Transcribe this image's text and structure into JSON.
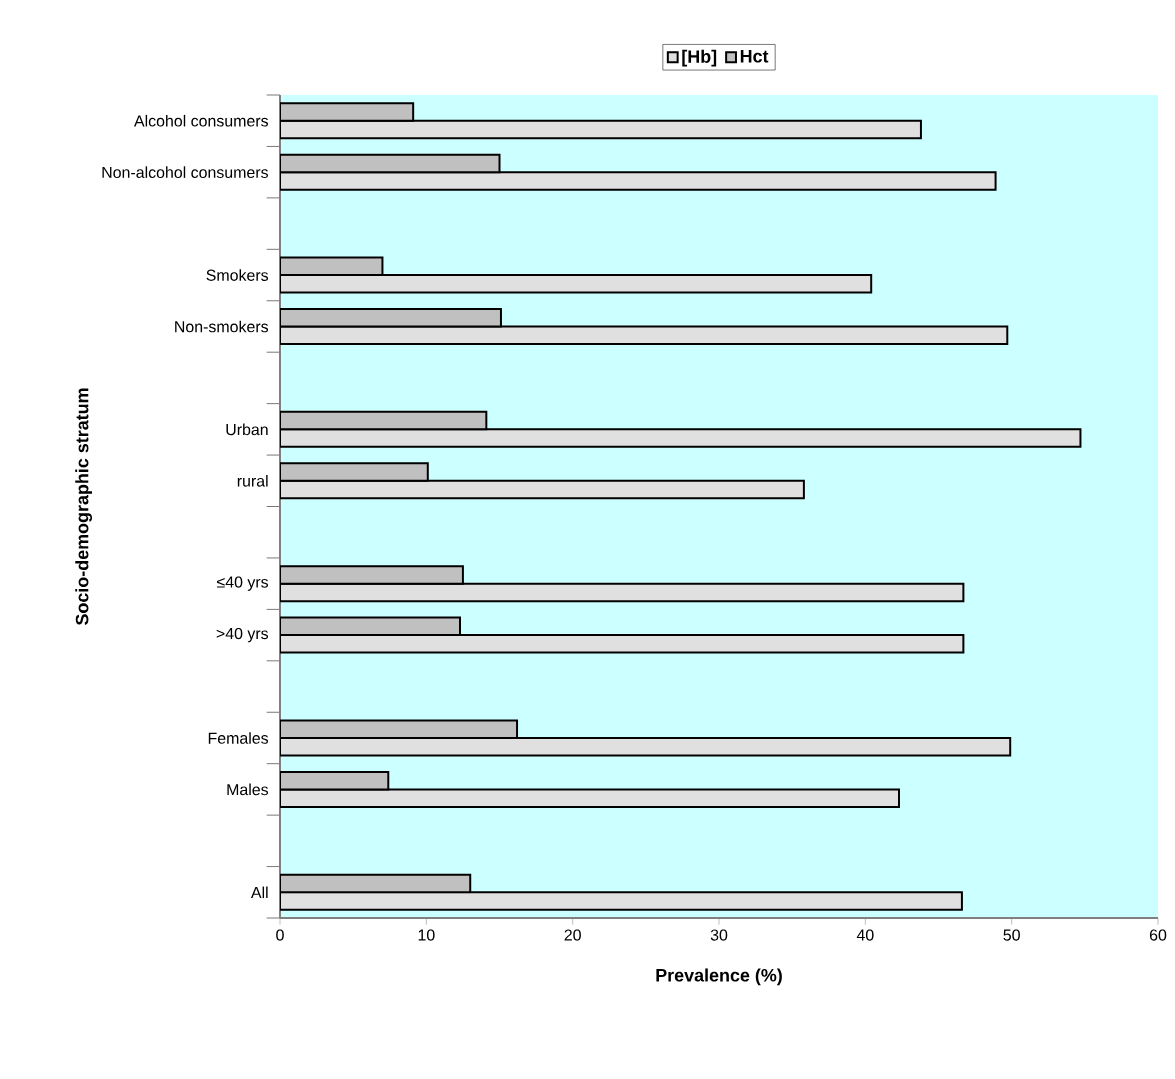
{
  "chart_data": {
    "type": "bar",
    "orientation": "horizontal",
    "xlabel": "Prevalence (%)",
    "ylabel": "Socio-demographic stratum",
    "categories": [
      "Alcohol consumers",
      "Non-alcohol consumers",
      null,
      "Smokers",
      "Non-smokers",
      null,
      "Urban",
      "rural",
      null,
      "≤40 yrs",
      ">40 yrs",
      null,
      "Females",
      "Males",
      null,
      "All"
    ],
    "series": [
      {
        "name": "[Hb]",
        "color": "#e0e0e0",
        "values": [
          43.8,
          48.9,
          null,
          40.4,
          49.7,
          null,
          54.7,
          35.8,
          null,
          46.7,
          46.7,
          null,
          49.9,
          42.3,
          null,
          46.6
        ]
      },
      {
        "name": "Hct",
        "color": "#c0c0c0",
        "values": [
          9.1,
          15.0,
          null,
          7.0,
          15.1,
          null,
          14.1,
          10.1,
          null,
          12.5,
          12.3,
          null,
          16.2,
          7.4,
          null,
          13.0
        ]
      }
    ],
    "xlim": [
      0,
      60
    ],
    "xticks": [
      0,
      10,
      20,
      30,
      40,
      50,
      60
    ],
    "grid": false,
    "legend": "top"
  }
}
